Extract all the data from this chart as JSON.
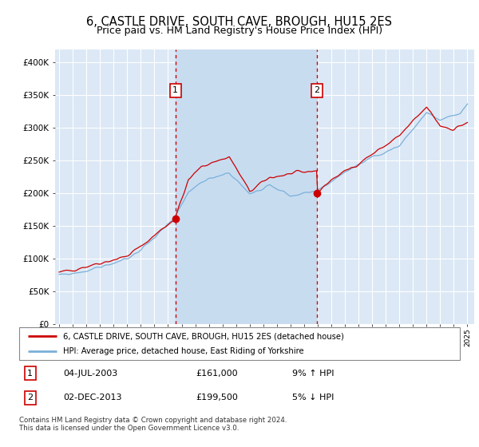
{
  "title": "6, CASTLE DRIVE, SOUTH CAVE, BROUGH, HU15 2ES",
  "subtitle": "Price paid vs. HM Land Registry's House Price Index (HPI)",
  "legend_line1": "6, CASTLE DRIVE, SOUTH CAVE, BROUGH, HU15 2ES (detached house)",
  "legend_line2": "HPI: Average price, detached house, East Riding of Yorkshire",
  "annotation1_label": "1",
  "annotation1_date": "04-JUL-2003",
  "annotation1_price": "£161,000",
  "annotation1_hpi": "9% ↑ HPI",
  "annotation1_year": 2003.54,
  "annotation1_value": 161000,
  "annotation2_label": "2",
  "annotation2_date": "02-DEC-2013",
  "annotation2_price": "£199,500",
  "annotation2_hpi": "5% ↓ HPI",
  "annotation2_year": 2013.92,
  "annotation2_value": 199500,
  "footer": "Contains HM Land Registry data © Crown copyright and database right 2024.\nThis data is licensed under the Open Government Licence v3.0.",
  "ylim": [
    0,
    420000
  ],
  "xlim_start": 1994.7,
  "xlim_end": 2025.5,
  "background_color": "#ffffff",
  "plot_bg_color": "#dce8f5",
  "grid_color": "#ffffff",
  "shade_color": "#c8dcf0",
  "hpi_color": "#7ab0d8",
  "price_color": "#cc0000",
  "vline_color": "#cc0000",
  "title_fontsize": 10.5,
  "subtitle_fontsize": 9
}
